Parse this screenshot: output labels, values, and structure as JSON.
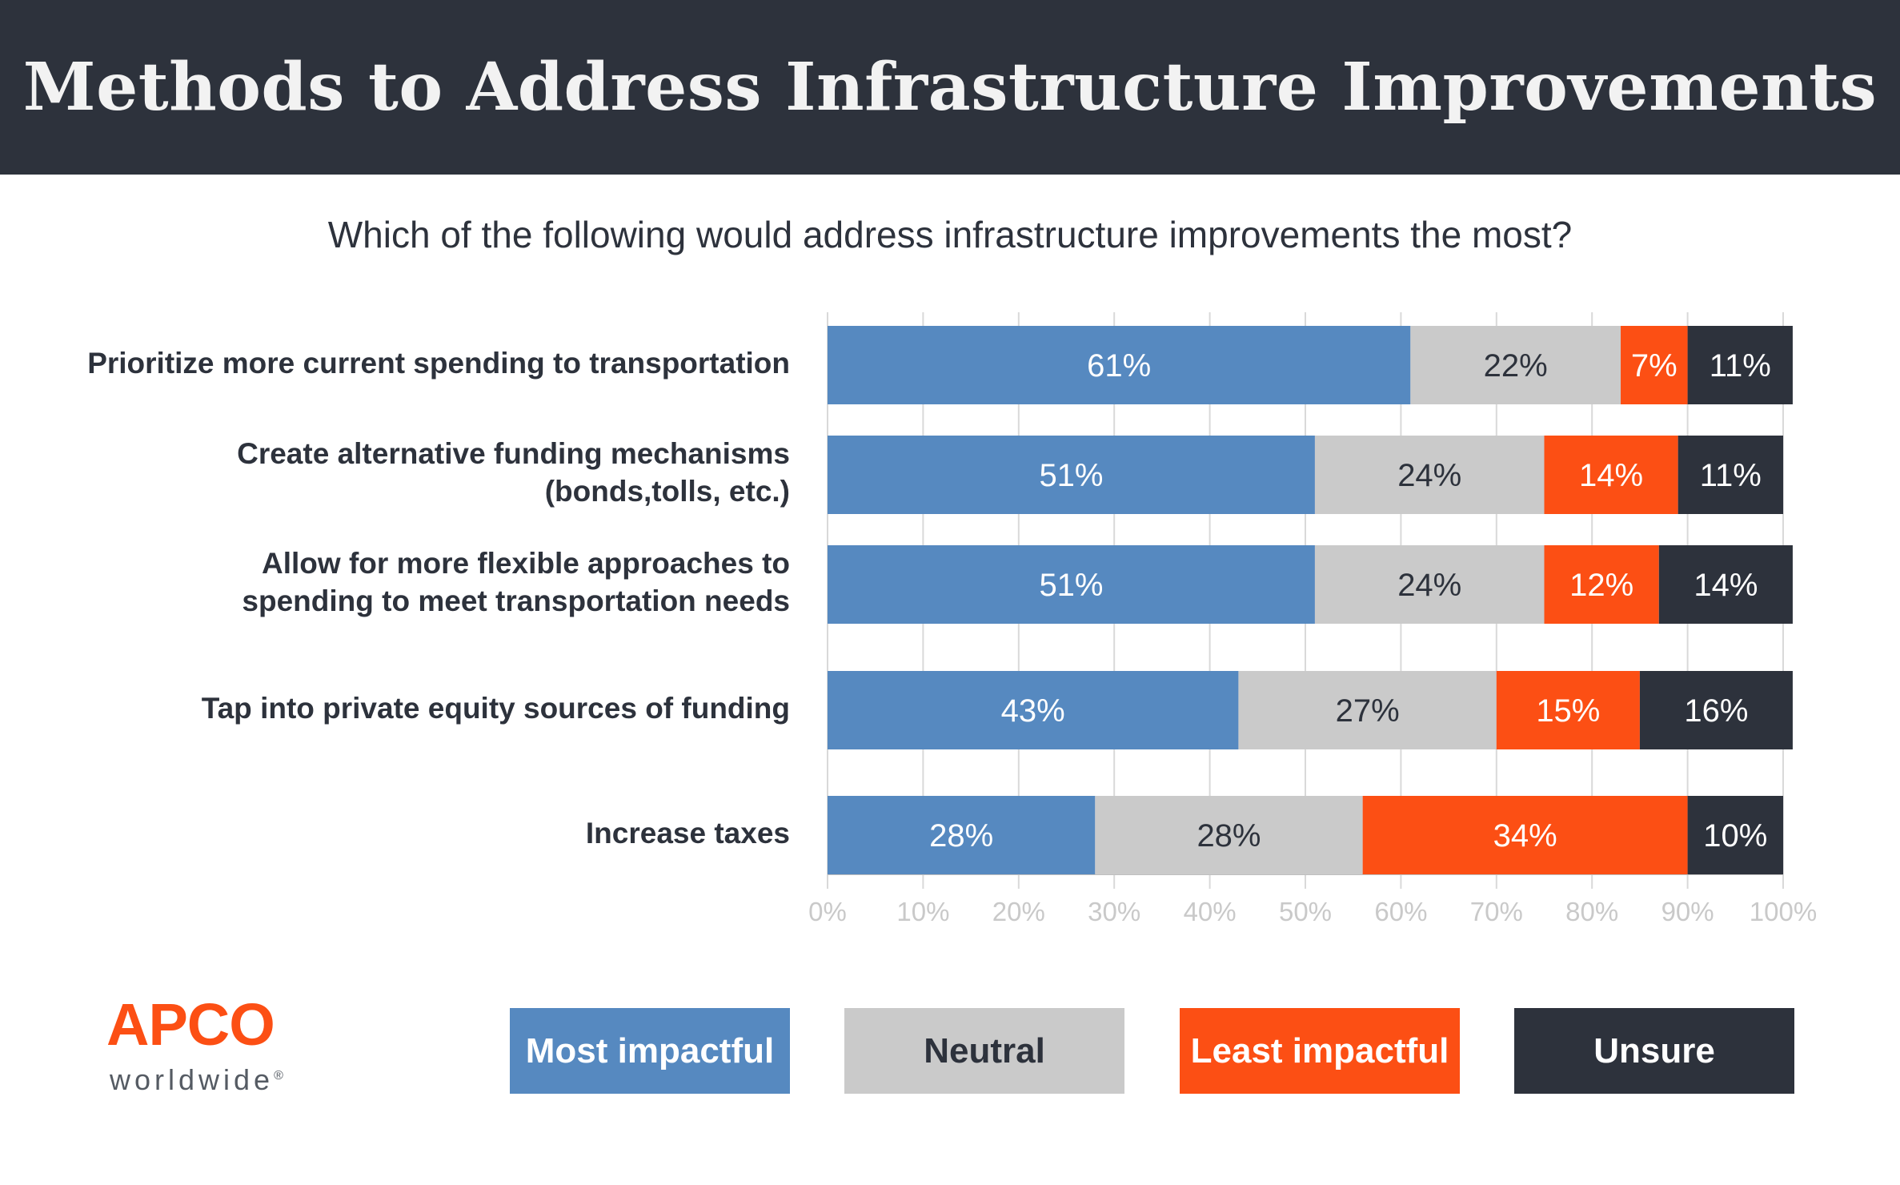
{
  "title": "Methods to Address Infrastructure Improvements",
  "subtitle": "Which of the following would address infrastructure improvements the most?",
  "logo": {
    "name": "APCO",
    "sub": "worldwide",
    "mark": "®"
  },
  "colors": {
    "header_bg": "#2d323c",
    "most": "#5689c0",
    "neutral": "#cacaca",
    "least": "#fc4f14",
    "unsure": "#2d323c",
    "grid": "#d9d9d9"
  },
  "legend": [
    {
      "label": "Most impactful",
      "color": "#5689c0",
      "text_color": "#ffffff"
    },
    {
      "label": "Neutral",
      "color": "#cacaca",
      "text_color": "#2d323c"
    },
    {
      "label": "Least impactful",
      "color": "#fc4f14",
      "text_color": "#ffffff"
    },
    {
      "label": "Unsure",
      "color": "#2d323c",
      "text_color": "#ffffff"
    }
  ],
  "chart_data": {
    "type": "bar",
    "orientation": "horizontal",
    "stacked": true,
    "title": "",
    "xlabel": "",
    "ylabel": "",
    "xlim": [
      0,
      100
    ],
    "x_ticks": [
      "0%",
      "10%",
      "20%",
      "30%",
      "40%",
      "50%",
      "60%",
      "70%",
      "80%",
      "90%",
      "100%"
    ],
    "grid": true,
    "legend_position": "bottom",
    "categories": [
      [
        "Prioritize more current spending to transportation"
      ],
      [
        "Create alternative funding mechanisms",
        "(bonds,tolls, etc.)"
      ],
      [
        "Allow for more flexible approaches to",
        "spending to meet transportation needs"
      ],
      [
        "Tap into private equity sources of funding"
      ],
      [
        "Increase taxes"
      ]
    ],
    "series": [
      {
        "name": "Most impactful",
        "values": [
          61,
          51,
          51,
          43,
          28
        ],
        "labels": [
          "61%",
          "51%",
          "51%",
          "43%",
          "28%"
        ]
      },
      {
        "name": "Neutral",
        "values": [
          22,
          24,
          24,
          27,
          28
        ],
        "labels": [
          "22%",
          "24%",
          "24%",
          "27%",
          "28%"
        ]
      },
      {
        "name": "Least impactful",
        "values": [
          7,
          14,
          12,
          15,
          34
        ],
        "labels": [
          "7%",
          "14%",
          "12%",
          "15%",
          "34%"
        ]
      },
      {
        "name": "Unsure",
        "values": [
          11,
          11,
          14,
          16,
          10
        ],
        "labels": [
          "11%",
          "11%",
          "14%",
          "16%",
          "10%"
        ]
      }
    ]
  }
}
